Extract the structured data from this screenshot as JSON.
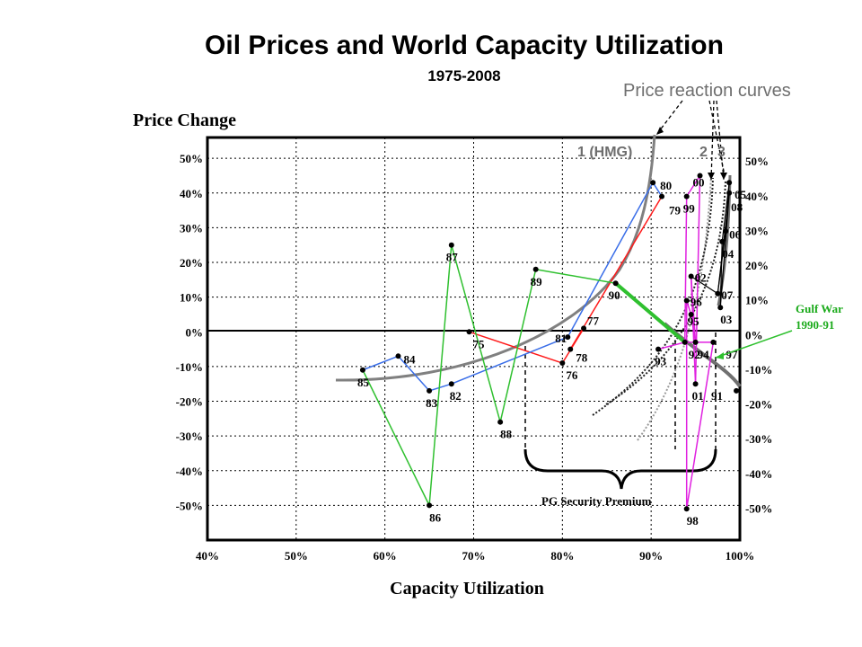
{
  "chart_data": {
    "type": "scatter",
    "title": "Oil Prices and World Capacity Utilization",
    "subtitle": "1975-2008",
    "xlabel": "Capacity Utilization",
    "ylabel": "Price Change",
    "xlim": [
      40,
      100
    ],
    "ylim": [
      -60,
      56
    ],
    "x_ticks": [
      "40%",
      "50%",
      "60%",
      "70%",
      "80%",
      "90%",
      "100%"
    ],
    "y_ticks_left": [
      "50%",
      "40%",
      "30%",
      "20%",
      "10%",
      "0%",
      "-10%",
      "-20%",
      "-30%",
      "-40%",
      "-50%"
    ],
    "y_ticks_right": [
      "50%",
      "40%",
      "30%",
      "20%",
      "10%",
      "0%",
      "-10%",
      "-20%",
      "-30%",
      "-40%",
      "-50%"
    ],
    "grid": true,
    "points": [
      {
        "year": "75",
        "x": 69.5,
        "y": 0
      },
      {
        "year": "76",
        "x": 80.0,
        "y": -9
      },
      {
        "year": "77",
        "x": 82.4,
        "y": 1
      },
      {
        "year": "78",
        "x": 80.9,
        "y": -5
      },
      {
        "year": "79",
        "x": 91.2,
        "y": 39
      },
      {
        "year": "80",
        "x": 90.2,
        "y": 43
      },
      {
        "year": "81",
        "x": 80.6,
        "y": -1.5
      },
      {
        "year": "82",
        "x": 67.5,
        "y": -15
      },
      {
        "year": "83",
        "x": 65.0,
        "y": -17
      },
      {
        "year": "84",
        "x": 61.5,
        "y": -7
      },
      {
        "year": "85",
        "x": 57.5,
        "y": -11
      },
      {
        "year": "86",
        "x": 65.0,
        "y": -50
      },
      {
        "year": "87",
        "x": 67.5,
        "y": 25
      },
      {
        "year": "88",
        "x": 73.0,
        "y": -26
      },
      {
        "year": "89",
        "x": 77.0,
        "y": 18
      },
      {
        "year": "90",
        "x": 86.0,
        "y": 14
      },
      {
        "year": "91",
        "x": 99.6,
        "y": -17
      },
      {
        "year": "92",
        "x": 93.8,
        "y": -3
      },
      {
        "year": "93",
        "x": 90.8,
        "y": -5
      },
      {
        "year": "94",
        "x": 95.0,
        "y": -3
      },
      {
        "year": "95",
        "x": 94.5,
        "y": 5
      },
      {
        "year": "96",
        "x": 94.0,
        "y": 9
      },
      {
        "year": "97",
        "x": 97.0,
        "y": -3
      },
      {
        "year": "98",
        "x": 94.0,
        "y": -51
      },
      {
        "year": "99",
        "x": 94.0,
        "y": 39
      },
      {
        "year": "00",
        "x": 95.5,
        "y": 45
      },
      {
        "year": "01",
        "x": 95.0,
        "y": -15
      },
      {
        "year": "02",
        "x": 94.5,
        "y": 16
      },
      {
        "year": "03",
        "x": 97.8,
        "y": 7
      },
      {
        "year": "04",
        "x": 98.0,
        "y": 26
      },
      {
        "year": "05",
        "x": 98.8,
        "y": 43
      },
      {
        "year": "06",
        "x": 98.4,
        "y": 29
      },
      {
        "year": "07",
        "x": 97.5,
        "y": 11
      },
      {
        "year": "08",
        "x": 98.8,
        "y": 40
      }
    ],
    "annotations": {
      "curve_labels": [
        "1 (HMG)",
        "2",
        "3"
      ],
      "price_reaction": "Price reaction curves",
      "gulf_war": [
        "Gulf War",
        "1990-91"
      ],
      "pg_premium": "PG Security Premium"
    },
    "colors": {
      "red": "#ff1a1a",
      "blue": "#3a6ee8",
      "green": "#2fc02f",
      "magenta": "#e020e0",
      "black": "#000000",
      "gray_curve": "#808080"
    }
  }
}
